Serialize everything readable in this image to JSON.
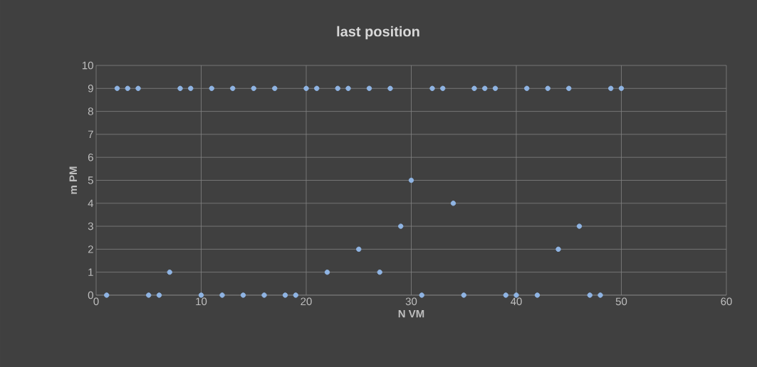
{
  "chart_data": {
    "type": "scatter",
    "title": "last position",
    "xlabel": "N VM",
    "ylabel": "m PM",
    "x": [
      1,
      2,
      3,
      4,
      5,
      6,
      7,
      8,
      9,
      10,
      11,
      12,
      13,
      14,
      15,
      16,
      17,
      18,
      19,
      20,
      21,
      22,
      23,
      24,
      25,
      26,
      27,
      28,
      29,
      30,
      31,
      32,
      33,
      34,
      35,
      36,
      37,
      38,
      39,
      40,
      41,
      42,
      43,
      44,
      45,
      46,
      47,
      48,
      49,
      50
    ],
    "values": [
      0,
      9,
      9,
      9,
      0,
      0,
      1,
      9,
      9,
      0,
      9,
      0,
      9,
      0,
      9,
      0,
      9,
      0,
      0,
      9,
      9,
      1,
      9,
      9,
      2,
      9,
      1,
      9,
      3,
      5,
      0,
      9,
      9,
      4,
      0,
      9,
      9,
      9,
      0,
      0,
      9,
      0,
      9,
      2,
      9,
      3,
      0,
      0,
      9,
      9
    ],
    "color": "#8fb4e3",
    "grid": true,
    "xlim": [
      0,
      60
    ],
    "xticks": [
      0,
      10,
      20,
      30,
      40,
      50,
      60
    ],
    "ylim": [
      0,
      10
    ],
    "yticks": [
      0,
      1,
      2,
      3,
      4,
      5,
      6,
      7,
      8,
      9,
      10
    ]
  }
}
